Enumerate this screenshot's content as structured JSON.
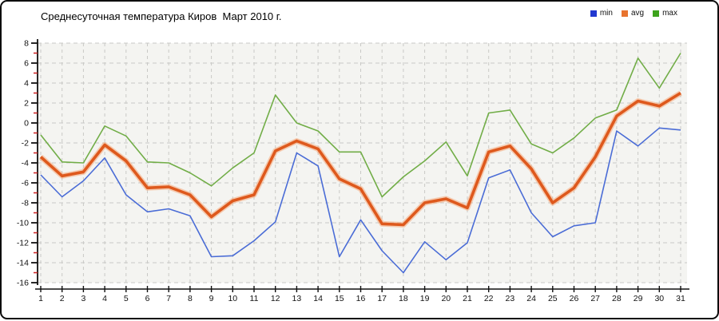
{
  "title": "Среднесуточная температура Киров  Март 2010 г.",
  "legend": {
    "position": "top-right",
    "items": [
      {
        "label": "min",
        "color": "#2138d0"
      },
      {
        "label": "avg",
        "color": "#e8732e"
      },
      {
        "label": "max",
        "color": "#3da31d"
      }
    ]
  },
  "colors": {
    "plot_background": "#f4f4f1",
    "grid_line": "#c9c9c6",
    "axis_line": "#111111",
    "minor_tick_red": "#cc2020",
    "tick_label": "#111111",
    "avg_halo": "#f5a878"
  },
  "chart_data": {
    "type": "line",
    "title": "Среднесуточная температура Киров  Март 2010 г.",
    "xlabel": "",
    "ylabel": "",
    "x": [
      1,
      2,
      3,
      4,
      5,
      6,
      7,
      8,
      9,
      10,
      11,
      12,
      13,
      14,
      15,
      16,
      17,
      18,
      19,
      20,
      21,
      22,
      23,
      24,
      25,
      26,
      27,
      28,
      29,
      30,
      31
    ],
    "ylim": [
      -16,
      8
    ],
    "ytick_step": 2,
    "grid": true,
    "legend_position": "top-right",
    "series": [
      {
        "name": "max",
        "color": "#71ad47",
        "width": 1.6,
        "values": [
          -1.2,
          -3.9,
          -4.0,
          -0.3,
          -1.3,
          -3.9,
          -4.0,
          -5.0,
          -6.3,
          -4.5,
          -3.0,
          2.8,
          0.0,
          -0.8,
          -2.9,
          -2.9,
          -7.4,
          -5.4,
          -3.8,
          -1.9,
          -5.3,
          1.0,
          1.3,
          -2.1,
          -3.0,
          -1.5,
          0.5,
          1.3,
          6.5,
          3.5,
          7.0
        ]
      },
      {
        "name": "min",
        "color": "#4a6cd6",
        "width": 1.6,
        "values": [
          -5.2,
          -7.4,
          -5.8,
          -3.5,
          -7.2,
          -8.9,
          -8.6,
          -9.3,
          -13.4,
          -13.3,
          -11.8,
          -9.9,
          -3.0,
          -4.3,
          -13.4,
          -9.7,
          -12.8,
          -15.0,
          -11.9,
          -13.7,
          -12.0,
          -5.5,
          -4.7,
          -9.0,
          -11.4,
          -10.3,
          -10.0,
          -0.8,
          -2.3,
          -0.5,
          -0.7
        ]
      },
      {
        "name": "avg",
        "color": "#de591d",
        "width": 3.6,
        "values": [
          -3.4,
          -5.3,
          -4.9,
          -2.2,
          -3.8,
          -6.5,
          -6.4,
          -7.2,
          -9.4,
          -7.8,
          -7.2,
          -2.8,
          -1.8,
          -2.6,
          -5.6,
          -6.6,
          -10.1,
          -10.2,
          -8.0,
          -7.6,
          -8.5,
          -2.9,
          -2.3,
          -4.6,
          -8.0,
          -6.5,
          -3.4,
          0.7,
          2.2,
          1.7,
          3.0
        ]
      }
    ]
  }
}
